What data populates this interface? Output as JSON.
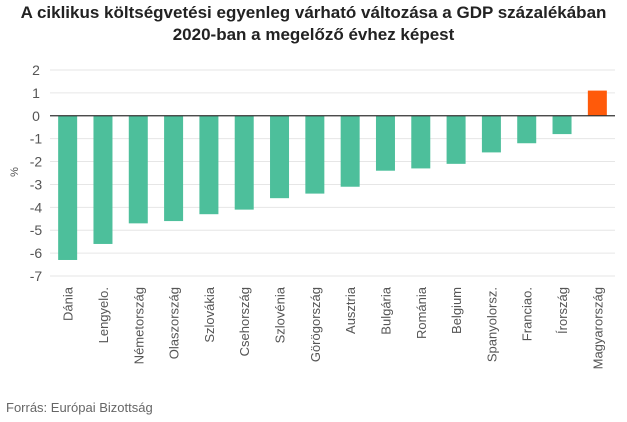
{
  "title_lines": [
    "A ciklikus költségvetési egyenleg várható változása a GDP százalékában",
    "2020-ban a megelőző évhez képest"
  ],
  "source": "Forrás: Európai Bizottság",
  "colors": {
    "bar": "#4dbf9b",
    "highlight": "#ff5a0a",
    "grid": "#e6e6e6",
    "zero_line": "#333333",
    "text": "#555555"
  },
  "chart_data": {
    "type": "bar",
    "title": "A ciklikus költségvetési egyenleg várható változása a GDP százalékában 2020-ban a megelőző évhez képest",
    "ylabel": "%",
    "xlabel": "",
    "ylim": [
      -7,
      2
    ],
    "yticks": [
      2,
      1,
      0,
      -1,
      -2,
      -3,
      -4,
      -5,
      -6,
      -7
    ],
    "grid": true,
    "categories": [
      "Dánia",
      "Lengyelo.",
      "Németország",
      "Olaszország",
      "Szlovákia",
      "Csehország",
      "Szlovénia",
      "Görögország",
      "Ausztria",
      "Bulgária",
      "Románia",
      "Belgium",
      "Spanyolorsz.",
      "Franciao.",
      "Írország",
      "Magyarország"
    ],
    "values": [
      -6.3,
      -5.6,
      -4.7,
      -4.6,
      -4.3,
      -4.1,
      -3.6,
      -3.4,
      -3.1,
      -2.4,
      -2.3,
      -2.1,
      -1.6,
      -1.2,
      -0.8,
      1.1
    ],
    "highlight_category": "Magyarország"
  }
}
